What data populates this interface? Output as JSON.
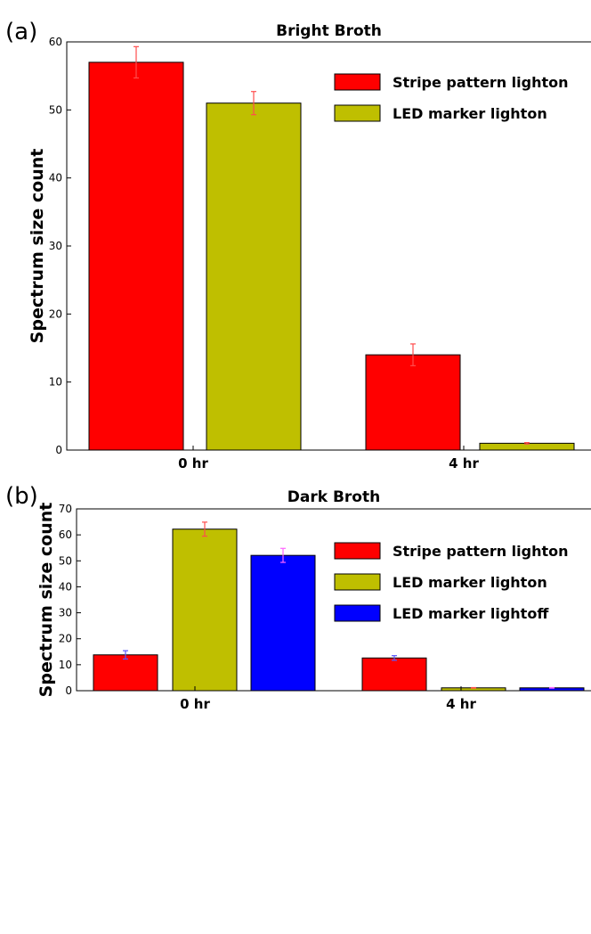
{
  "chart_data": [
    {
      "type": "bar",
      "panel_label": "(a)",
      "title": "Bright Broth",
      "ylabel": "Spectrum size count",
      "xlabel": "",
      "ylim": [
        0,
        60
      ],
      "yticks": [
        0,
        10,
        20,
        30,
        40,
        50,
        60
      ],
      "categories": [
        "0 hr",
        "4 hr"
      ],
      "series": [
        {
          "name": "Stripe pattern lighton",
          "color": "#ff0000",
          "errcolor": "#ff4d4d",
          "values": [
            57,
            14
          ],
          "errors": [
            2.3,
            1.6
          ]
        },
        {
          "name": "LED marker lighton",
          "color": "#bfbf00",
          "errcolor": "#ff4d4d",
          "values": [
            51,
            1
          ],
          "errors": [
            1.7,
            0.1
          ]
        }
      ],
      "legend_position": "top-right"
    },
    {
      "type": "bar",
      "panel_label": "(b)",
      "title": "Dark Broth",
      "ylabel": "Spectrum size count",
      "xlabel": "",
      "ylim": [
        0,
        70
      ],
      "yticks": [
        0,
        10,
        20,
        30,
        40,
        50,
        60,
        70
      ],
      "categories": [
        "0 hr",
        "4 hr"
      ],
      "series": [
        {
          "name": "Stripe pattern lighton",
          "color": "#ff0000",
          "errcolor": "#5a5aff",
          "values": [
            13.8,
            12.6
          ],
          "errors": [
            1.6,
            0.9
          ]
        },
        {
          "name": "LED marker lighton",
          "color": "#bfbf00",
          "errcolor": "#ff4d4d",
          "values": [
            62.2,
            1.1
          ],
          "errors": [
            2.7,
            0.1
          ]
        },
        {
          "name": "LED marker lightoff",
          "color": "#0000ff",
          "errcolor": "#ff66ff",
          "values": [
            52.1,
            1.1
          ],
          "errors": [
            2.7,
            0.1
          ]
        }
      ],
      "legend_position": "top-right"
    }
  ]
}
